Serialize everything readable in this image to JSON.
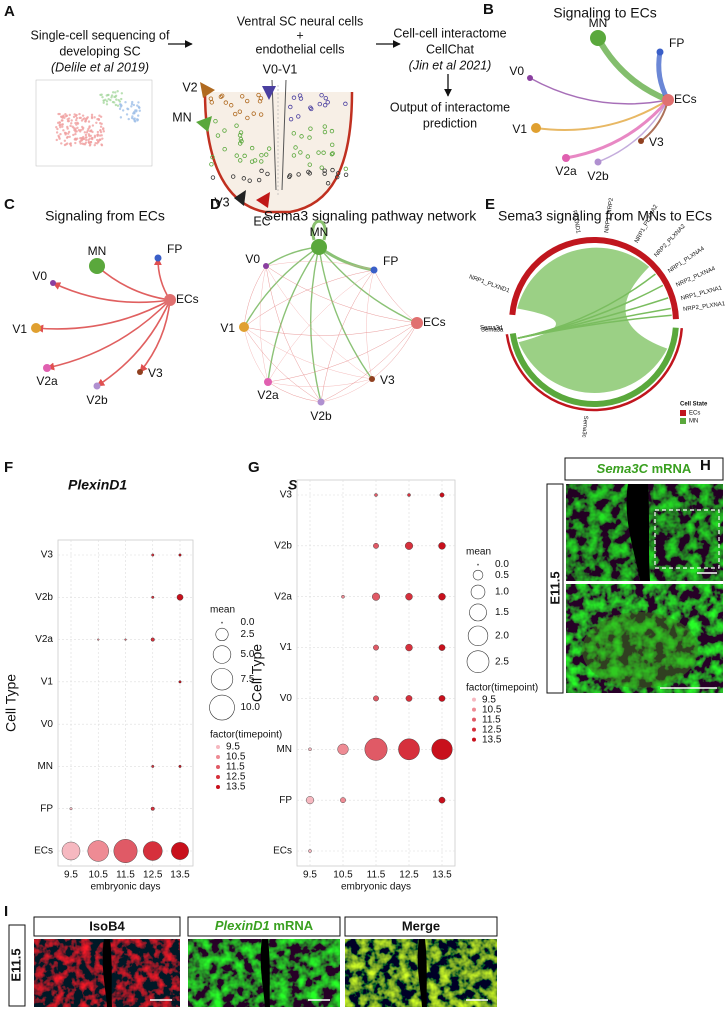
{
  "panel_labels": [
    "A",
    "B",
    "C",
    "D",
    "E",
    "F",
    "G",
    "H",
    "I"
  ],
  "panel_a": {
    "step1": [
      "Single-cell sequencing of",
      "developing SC",
      "(Delile et al 2019)"
    ],
    "step2": [
      "Ventral SC neural cells",
      "+",
      "endothelial cells"
    ],
    "step3": [
      "Cell-cell interactome",
      "CellChat",
      "(Jin et al 2021)"
    ],
    "output": [
      "Output of interactome",
      "prediction"
    ],
    "schematic_labels": [
      "V2",
      "V0-V1",
      "MN",
      "V3",
      "EC"
    ]
  },
  "panel_b": {
    "title": "Signaling to ECs",
    "nodes": [
      "MN",
      "FP",
      "V0",
      "V1",
      "V2a",
      "V2b",
      "V3",
      "ECs"
    ]
  },
  "panel_c": {
    "title": "Signaling from ECs",
    "nodes": [
      "MN",
      "FP",
      "V0",
      "V1",
      "V2a",
      "V2b",
      "V3",
      "ECs"
    ]
  },
  "panel_d": {
    "title": "Sema3 signaling pathway network",
    "nodes": [
      "MN",
      "FP",
      "V0",
      "V1",
      "V2a",
      "V2b",
      "V3",
      "ECs"
    ]
  },
  "panel_e": {
    "title": "Sema3 signaling from MNs to ECs",
    "receptors": [
      "NRP1_PLXND1",
      "PLXND1",
      "NRP1_NRP2",
      "NRP1_PLXNA2",
      "NRP2_PLXNA2",
      "NRP1_PLXNA4",
      "NRP2_PLXNA4",
      "NRP1_PLXNA1",
      "NRP2_PLXNA1"
    ],
    "ligands": [
      "Sema3a",
      "Sema3d",
      "Sema3c"
    ],
    "legend_title": "Cell State",
    "legend": [
      "ECs",
      "MN"
    ]
  },
  "chart_data": [
    {
      "type": "dot",
      "title": "PlexinD1",
      "xlabel": "embryonic days",
      "ylabel": "Cell Type",
      "categories": [
        "ECs",
        "FP",
        "MN",
        "V0",
        "V1",
        "V2a",
        "V2b",
        "V3"
      ],
      "series": [
        {
          "name": "9.5",
          "color": "#f6b8c0",
          "values": [
            5.2,
            0.1,
            null,
            null,
            null,
            null,
            null,
            null
          ]
        },
        {
          "name": "10.5",
          "color": "#ee8b94",
          "values": [
            7.0,
            null,
            null,
            null,
            null,
            0.05,
            null,
            null
          ]
        },
        {
          "name": "11.5",
          "color": "#e05a66",
          "values": [
            8.8,
            null,
            null,
            null,
            null,
            0.05,
            null,
            null
          ]
        },
        {
          "name": "12.5",
          "color": "#d6303c",
          "values": [
            5.8,
            0.2,
            0.1,
            null,
            null,
            0.2,
            0.1,
            0.1
          ]
        },
        {
          "name": "13.5",
          "color": "#c8101c",
          "values": [
            4.8,
            null,
            0.1,
            null,
            0.1,
            null,
            0.6,
            0.1
          ]
        }
      ],
      "size_legend": {
        "title": "mean",
        "values": [
          {
            "value": 0,
            "label": "0.0"
          },
          2.5,
          {
            "value": 5,
            "label": "5.0"
          },
          7.5,
          {
            "value": 10,
            "label": "10.0"
          }
        ]
      },
      "size_max": 10,
      "color_legend_title": "factor(timepoint)",
      "grid": true
    },
    {
      "type": "dot",
      "title": "Sema3C",
      "xlabel": "embryonic days",
      "ylabel": "Cell Type",
      "categories": [
        "ECs",
        "FP",
        "MN",
        "V0",
        "V1",
        "V2a",
        "V2b",
        "V3"
      ],
      "series": [
        {
          "name": "9.5",
          "color": "#f6b8c0",
          "values": [
            0.05,
            0.3,
            0.05,
            null,
            null,
            null,
            null,
            null
          ]
        },
        {
          "name": "10.5",
          "color": "#ee8b94",
          "values": [
            null,
            0.15,
            0.6,
            null,
            null,
            0.05,
            null,
            null
          ]
        },
        {
          "name": "11.5",
          "color": "#e05a66",
          "values": [
            null,
            null,
            2.6,
            0.15,
            0.15,
            0.3,
            0.15,
            0.05
          ]
        },
        {
          "name": "12.5",
          "color": "#d6303c",
          "values": [
            null,
            null,
            2.3,
            0.2,
            0.25,
            0.25,
            0.3,
            0.05
          ]
        },
        {
          "name": "13.5",
          "color": "#c8101c",
          "values": [
            null,
            0.2,
            2.2,
            0.2,
            0.2,
            0.25,
            0.25,
            0.1
          ]
        }
      ],
      "size_legend": {
        "title": "mean",
        "values": [
          {
            "value": 0,
            "label": "0.0"
          },
          0.5,
          {
            "value": 1,
            "label": "1.0"
          },
          1.5,
          {
            "value": 2,
            "label": "2.0"
          },
          2.5
        ]
      },
      "size_max": 2.5,
      "color_legend_title": "factor(timepoint)",
      "grid": true
    }
  ],
  "panel_h": {
    "header_gene": "Sema3C",
    "header_suffix": "mRNA",
    "stage": "E11.5"
  },
  "panel_i": {
    "header_1": "IsoB4",
    "header_2_gene": "PlexinD1",
    "header_2_suffix": "mRNA",
    "header_3": "Merge",
    "stage": "E11.5"
  }
}
